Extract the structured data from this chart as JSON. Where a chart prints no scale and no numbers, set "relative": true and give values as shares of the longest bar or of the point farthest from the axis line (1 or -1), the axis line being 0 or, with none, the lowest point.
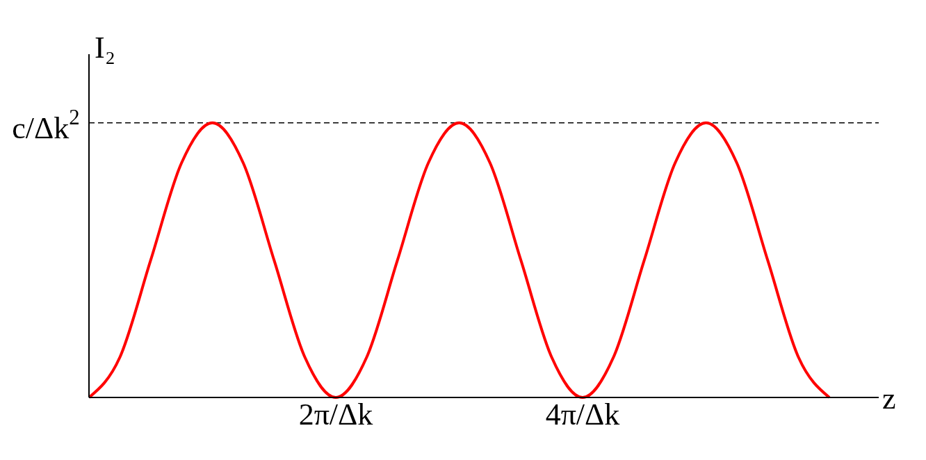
{
  "chart_data": {
    "type": "line",
    "xlabel": "z",
    "ylabel": "I₂",
    "relative": true,
    "x": [
      0,
      0.25,
      0.5,
      0.75,
      1,
      1.25,
      1.5,
      1.75,
      2,
      2.25,
      2.5,
      2.75,
      3,
      3.25,
      3.5,
      3.75,
      4,
      4.25,
      4.5,
      4.75,
      5,
      5.25,
      5.5,
      5.75,
      6
    ],
    "series": [
      {
        "color": "#ff0000",
        "values": [
          0,
          0.146,
          0.5,
          0.854,
          1,
          0.854,
          0.5,
          0.146,
          0,
          0.146,
          0.5,
          0.854,
          1,
          0.854,
          0.5,
          0.146,
          0,
          0.146,
          0.5,
          0.854,
          1,
          0.854,
          0.5,
          0.146,
          0
        ]
      }
    ],
    "xlim": [
      0,
      6.4
    ],
    "xticks": [
      {
        "value": 2,
        "label": "2π/Δk"
      },
      {
        "value": 4,
        "label": "4π/Δk"
      }
    ],
    "ref_lines": [
      {
        "axis": "y",
        "value": 1,
        "label": "c/Δk$^{2}$",
        "color": "#000000",
        "line_style": "dashed"
      }
    ],
    "grid": false,
    "legend": false,
    "marker": "none",
    "line_style": "solid"
  }
}
